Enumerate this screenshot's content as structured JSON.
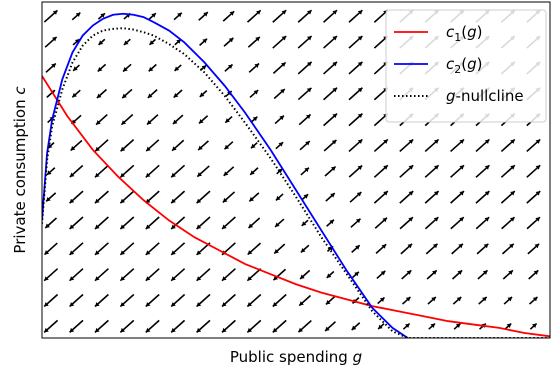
{
  "chart_data": {
    "type": "line",
    "xlabel": "Public spending g",
    "xlabel_parts": {
      "text": "Public spending ",
      "var": "g"
    },
    "ylabel": "Private consumption c",
    "ylabel_parts": {
      "text": "Private consumption ",
      "var": "c"
    },
    "xlim": [
      0,
      1
    ],
    "ylim": [
      0,
      1
    ],
    "ticks_shown": false,
    "grid": false,
    "legend_position": "top-right",
    "series": [
      {
        "name": "c1(g)",
        "legend": {
          "var": "c",
          "sub": "1",
          "arg": "(g)"
        },
        "color": "#ff0000",
        "style": "solid",
        "x": [
          0,
          0.05,
          0.1,
          0.15,
          0.2,
          0.25,
          0.3,
          0.35,
          0.4,
          0.45,
          0.5,
          0.55,
          0.6,
          0.65,
          0.7,
          0.75,
          0.8,
          0.85,
          0.9,
          0.95,
          1.0
        ],
        "y": [
          0.78,
          0.66,
          0.56,
          0.48,
          0.41,
          0.35,
          0.3,
          0.26,
          0.22,
          0.19,
          0.16,
          0.135,
          0.115,
          0.095,
          0.08,
          0.065,
          0.05,
          0.04,
          0.03,
          0.015,
          0.005
        ]
      },
      {
        "name": "c2(g)",
        "legend": {
          "var": "c",
          "sub": "2",
          "arg": "(g)"
        },
        "color": "#0000ff",
        "style": "solid",
        "x": [
          0,
          0.01,
          0.02,
          0.04,
          0.06,
          0.08,
          0.1,
          0.12,
          0.14,
          0.16,
          0.18,
          0.2,
          0.22,
          0.25,
          0.28,
          0.32,
          0.36,
          0.4,
          0.45,
          0.5,
          0.55,
          0.6,
          0.65,
          0.69,
          0.72
        ],
        "y": [
          0.35,
          0.55,
          0.65,
          0.77,
          0.85,
          0.9,
          0.93,
          0.95,
          0.962,
          0.965,
          0.962,
          0.955,
          0.94,
          0.915,
          0.88,
          0.82,
          0.75,
          0.67,
          0.56,
          0.44,
          0.32,
          0.2,
          0.09,
          0.03,
          0.0
        ]
      },
      {
        "name": "g-nullcline",
        "legend": {
          "var": "g",
          "rest": "-nullcline"
        },
        "color": "#000000",
        "style": "dotted",
        "x": [
          0,
          0.01,
          0.02,
          0.04,
          0.06,
          0.08,
          0.1,
          0.12,
          0.14,
          0.16,
          0.18,
          0.2,
          0.22,
          0.25,
          0.28,
          0.32,
          0.36,
          0.4,
          0.45,
          0.5,
          0.55,
          0.6,
          0.65,
          0.69,
          0.72,
          0.85,
          1.0
        ],
        "y": [
          0.34,
          0.53,
          0.63,
          0.74,
          0.82,
          0.87,
          0.9,
          0.915,
          0.92,
          0.922,
          0.918,
          0.91,
          0.9,
          0.875,
          0.845,
          0.79,
          0.72,
          0.64,
          0.535,
          0.42,
          0.3,
          0.19,
          0.08,
          0.02,
          0.0,
          0.0,
          0.0
        ]
      }
    ],
    "vector_field": {
      "nx": 20,
      "ny": 13,
      "arrow_color": "#000000",
      "description_of_pattern": "arrows point up-right where c is above the g-nullcline, down-left below it"
    }
  }
}
